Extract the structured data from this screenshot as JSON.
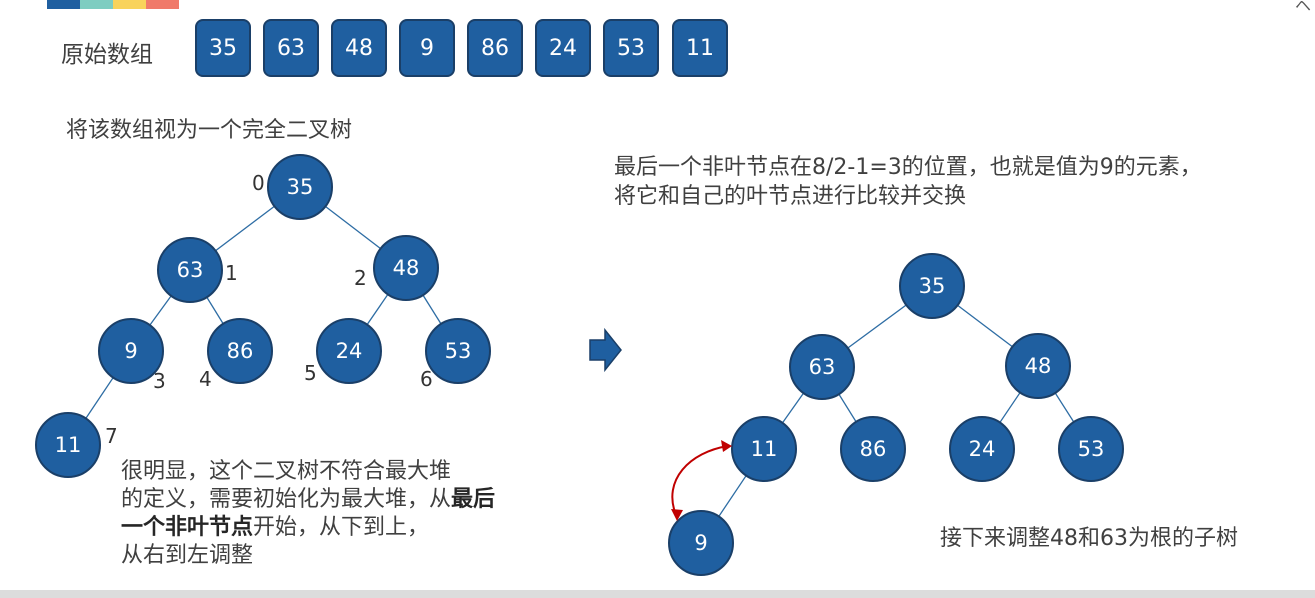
{
  "colors": {
    "node_fill": "#1f5fa0",
    "node_stroke": "#1a3f68",
    "edge": "#2e6da4",
    "swap_arrow": "#c00000",
    "top_bar": [
      "#1f5fa0",
      "#7ecdc1",
      "#f9d35b",
      "#f07a6a"
    ]
  },
  "original_array": {
    "label": "原始数组",
    "values": [
      "35",
      "63",
      "48",
      "9",
      "86",
      "24",
      "53",
      "11"
    ]
  },
  "tree_caption": "将该数组视为一个完全二叉树",
  "left_tree": {
    "nodes": [
      "35",
      "63",
      "48",
      "9",
      "86",
      "24",
      "53",
      "11"
    ],
    "indices": [
      "0",
      "1",
      "2",
      "3",
      "4",
      "5",
      "6",
      "7"
    ]
  },
  "arrow_icon": "right-arrow-icon",
  "explanation": {
    "line1": "很明显，这个二叉树不符合最大堆",
    "line2_prefix": "的定义，需要初始化为最大堆，从",
    "line2_bold": "最后",
    "line3_bold": "一个非叶节点",
    "line3_suffix": "开始，从下到上，",
    "line4": "从右到左调整"
  },
  "right_description": {
    "line1": "最后一个非叶节点在8/2-1=3的位置，也就是值为9的元素，",
    "line2": "将它和自己的叶节点进行比较并交换"
  },
  "right_tree": {
    "nodes": [
      "35",
      "63",
      "48",
      "11",
      "86",
      "24",
      "53",
      "9"
    ]
  },
  "next_step": "接下来调整48和63为根的子树",
  "corner_glyph": "ヘ"
}
